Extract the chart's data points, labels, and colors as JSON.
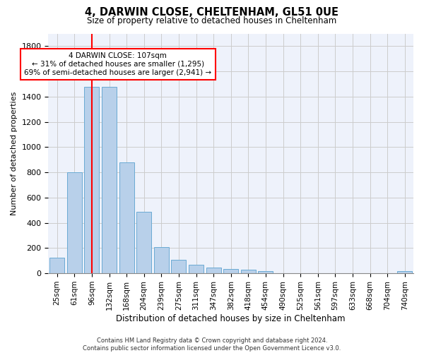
{
  "title1": "4, DARWIN CLOSE, CHELTENHAM, GL51 0UE",
  "title2": "Size of property relative to detached houses in Cheltenham",
  "xlabel": "Distribution of detached houses by size in Cheltenham",
  "ylabel": "Number of detached properties",
  "footer": "Contains HM Land Registry data © Crown copyright and database right 2024.\nContains public sector information licensed under the Open Government Licence v3.0.",
  "categories": [
    "25sqm",
    "61sqm",
    "96sqm",
    "132sqm",
    "168sqm",
    "204sqm",
    "239sqm",
    "275sqm",
    "311sqm",
    "347sqm",
    "382sqm",
    "418sqm",
    "454sqm",
    "490sqm",
    "525sqm",
    "561sqm",
    "597sqm",
    "633sqm",
    "668sqm",
    "704sqm",
    "740sqm"
  ],
  "values": [
    125,
    800,
    1480,
    1480,
    880,
    490,
    205,
    105,
    65,
    45,
    35,
    30,
    20,
    0,
    0,
    0,
    0,
    0,
    0,
    0,
    20
  ],
  "bar_color": "#b8d0ea",
  "bar_edge_color": "#6aaad4",
  "vline_color": "red",
  "annotation_text": "4 DARWIN CLOSE: 107sqm\n← 31% of detached houses are smaller (1,295)\n69% of semi-detached houses are larger (2,941) →",
  "annotation_box_color": "white",
  "annotation_border_color": "red",
  "ylim": [
    0,
    1900
  ],
  "yticks": [
    0,
    200,
    400,
    600,
    800,
    1000,
    1200,
    1400,
    1600,
    1800
  ],
  "grid_color": "#cccccc",
  "bg_color": "#eef2fb"
}
